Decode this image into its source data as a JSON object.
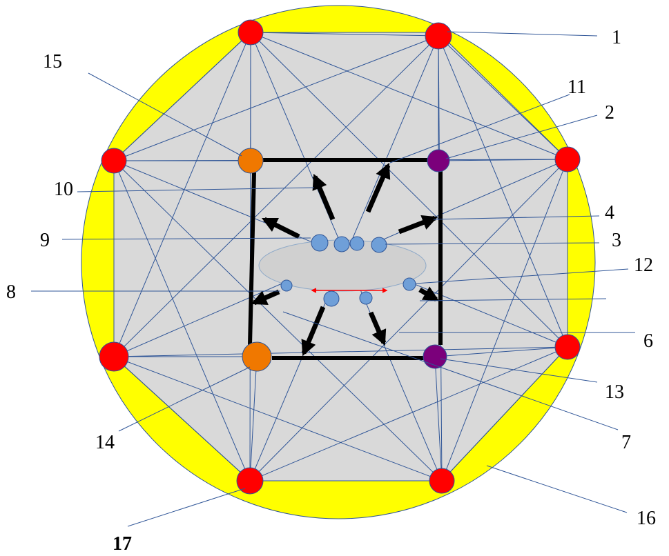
{
  "colors": {
    "outer_ring": "#ffff00",
    "octagon_fill": "#d9d9d9",
    "red_node": "#ff0000",
    "orange_node": "#f07800",
    "purple_node": "#7b007b",
    "blue_node": "#6f9fd8",
    "edge_line": "#2f5597",
    "frame": "#000000",
    "red_arrow": "#ff0000"
  },
  "labels": {
    "l1": "1",
    "l2": "2",
    "l3": "3",
    "l4": "4",
    "l6": "6",
    "l7": "7",
    "l8": "8",
    "l9": "9",
    "l10": "10",
    "l11": "11",
    "l12": "12",
    "l13": "13",
    "l14": "14",
    "l15": "15",
    "l16": "16",
    "l17": "17"
  }
}
